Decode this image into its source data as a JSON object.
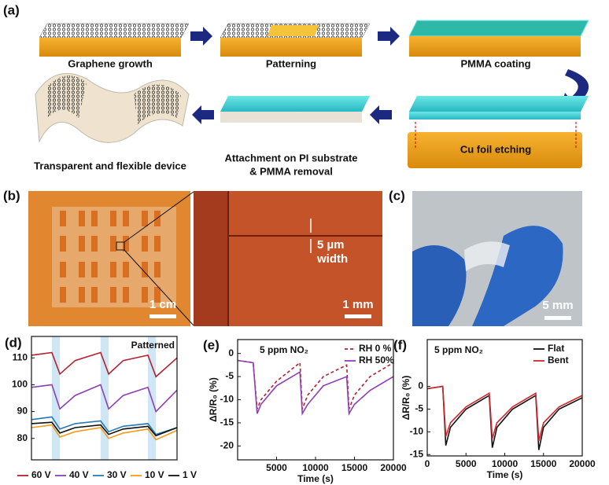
{
  "panel_labels": [
    "(a)",
    "(b)",
    "(c)",
    "(d)",
    "(e)",
    "(f)"
  ],
  "schematic": {
    "steps": [
      "Graphene growth",
      "Patterning",
      "PMMA coating",
      "Cu foil etching"
    ],
    "attachment": [
      "Attachment on PI substrate",
      "& PMMA removal"
    ],
    "device": "Transparent and flexible device"
  },
  "micrographs": {
    "scale_left": "1 cm",
    "scale_middle": "1 mm",
    "gap": [
      "5 µm",
      "width"
    ],
    "scale_photo": "5 mm"
  },
  "chart_data": [
    {
      "type": "line",
      "annotation": "Patterned",
      "xlim": [
        0,
        100
      ],
      "ylim": [
        72,
        118
      ],
      "yticks": [
        80,
        90,
        100,
        110
      ],
      "shaded": [
        [
          14,
          19.5
        ],
        [
          47.5,
          53
        ],
        [
          80,
          85.5
        ]
      ],
      "shade_color": "#cfe6f5",
      "legend": "bottom",
      "x": [
        0,
        14,
        19.5,
        30,
        47.5,
        53,
        63,
        80,
        85.5,
        100
      ],
      "series": [
        {
          "name": "60 V",
          "color": "#b3202f",
          "values": [
            111,
            112,
            104,
            109,
            112,
            104,
            109,
            111,
            103,
            110
          ]
        },
        {
          "name": "40 V",
          "color": "#8e3fb5",
          "values": [
            99,
            100,
            91,
            96,
            100,
            91,
            96,
            99,
            90,
            98
          ]
        },
        {
          "name": "30 V",
          "color": "#2a7ab0",
          "values": [
            87,
            88,
            83.5,
            85.5,
            86.5,
            82.5,
            84.5,
            85.5,
            81.5,
            84
          ]
        },
        {
          "name": "10 V",
          "color": "#f29b1d",
          "values": [
            84,
            85,
            80.5,
            82.5,
            84,
            80,
            82,
            83.5,
            79.5,
            83
          ]
        },
        {
          "name": "1 V",
          "color": "#111111",
          "values": [
            85.5,
            86,
            82,
            84,
            85,
            81.5,
            83.5,
            84.5,
            81,
            84
          ]
        }
      ]
    },
    {
      "type": "line",
      "annotation": "5 ppm  NO₂",
      "xlabel": "Time (s)",
      "ylabel": "ΔR/R₀ (%)",
      "xlim": [
        0,
        20000
      ],
      "xticks": [
        5000,
        10000,
        15000,
        20000
      ],
      "ylim": [
        -23,
        3
      ],
      "yticks": [
        0,
        -5,
        -10,
        -15,
        -20
      ],
      "legend": "upper right",
      "x": [
        0,
        2000,
        2500,
        3000,
        5000,
        8000,
        8300,
        9000,
        11000,
        14000,
        14300,
        15000,
        17000,
        20000
      ],
      "series": [
        {
          "name": "RH 0 %",
          "color": "#b3202f",
          "dash": true,
          "values": [
            -1.5,
            -2,
            -12,
            -10,
            -6,
            -2,
            -12,
            -9,
            -5,
            -2.5,
            -12,
            -9,
            -5,
            -2
          ]
        },
        {
          "name": "RH 50%",
          "color": "#8e3fb5",
          "values": [
            -1.5,
            -2,
            -13,
            -11,
            -7,
            -4,
            -13,
            -11,
            -7,
            -5,
            -13,
            -11,
            -8,
            -5
          ]
        }
      ]
    },
    {
      "type": "line",
      "annotation": "5 ppm NO₂",
      "xlabel": "Time (s)",
      "ylabel": "ΔR/R₀ (%)",
      "xlim": [
        0,
        20000
      ],
      "xticks": [
        0,
        5000,
        10000,
        15000,
        20000
      ],
      "ylim": [
        -15.3,
        10.3
      ],
      "yticks": [
        0,
        -5,
        -10,
        -15
      ],
      "legend": "upper right",
      "x": [
        0,
        2000,
        2400,
        3000,
        5000,
        8000,
        8400,
        9000,
        11000,
        14000,
        14400,
        15000,
        17000,
        20000
      ],
      "series": [
        {
          "name": "Flat",
          "color": "#111111",
          "values": [
            -0.5,
            0,
            -13,
            -9,
            -5,
            -2,
            -13.5,
            -9,
            -5,
            -2,
            -14,
            -9,
            -5,
            -2.5
          ]
        },
        {
          "name": "Bent",
          "color": "#d0242b",
          "values": [
            -0.5,
            0,
            -11,
            -8,
            -4.5,
            -1.5,
            -11.5,
            -8,
            -4.5,
            -1.5,
            -12,
            -8,
            -4.5,
            -2
          ]
        }
      ]
    }
  ]
}
